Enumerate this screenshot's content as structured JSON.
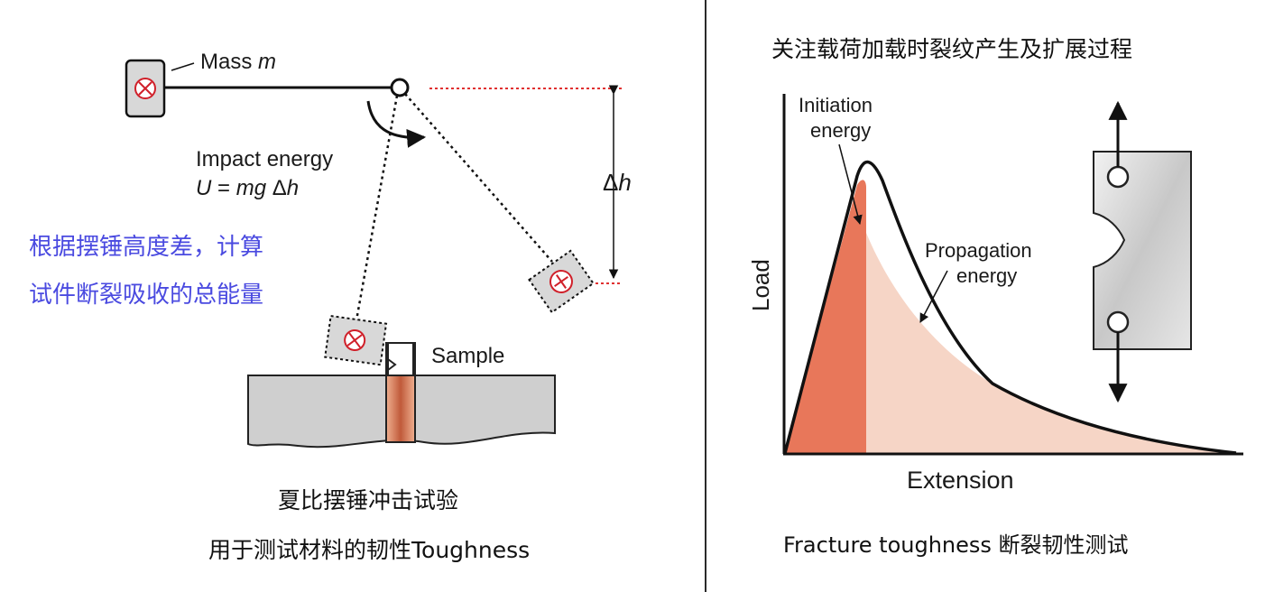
{
  "left": {
    "mass_label": "Mass ",
    "mass_var": "m",
    "impact_line1": "Impact energy",
    "impact_line2_var_u": "U",
    "impact_line2_rest": " = ",
    "impact_line2_mg": "mg",
    "impact_line2_dh": " Δ",
    "impact_line2_h": "h",
    "delta_h": "Δ",
    "delta_h_var": "h",
    "sample_label": "Sample",
    "note_line1": "根据摆锤高度差，计算",
    "note_line2": "试件断裂吸收的总能量",
    "caption_line1": "夏比摆锤冲击试验",
    "caption_line2": "用于测试材料的韧性Toughness"
  },
  "right": {
    "title": "关注载荷加载时裂纹产生及扩展过程",
    "ylabel": "Load",
    "xlabel": "Extension",
    "initiation_line1": "Initiation",
    "initiation_line2": "energy",
    "propagation_line1": "Propagation",
    "propagation_line2": "energy",
    "caption": "Fracture toughness 断裂韧性测试"
  },
  "colors": {
    "initiation_fill": "#e8775a",
    "propagation_fill": "#f6d5c6",
    "note_blue": "#4a4ae0",
    "guide_red": "#e03030",
    "pendulum_fill": "#d8d8d8",
    "mass_symbol": "#d0202a"
  },
  "icons": [
    "cross-in-circle-icon",
    "plus-in-circle-icon",
    "arrow-icon"
  ]
}
